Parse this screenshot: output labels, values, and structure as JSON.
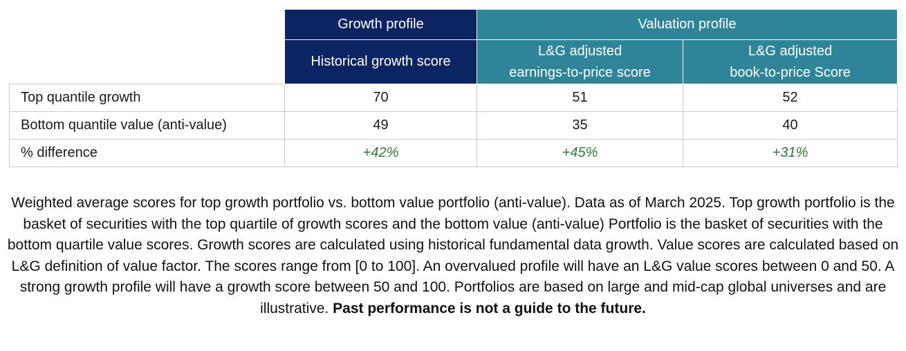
{
  "table": {
    "group_headers": {
      "growth": "Growth profile",
      "valuation": "Valuation profile"
    },
    "column_headers": {
      "historical_growth": "Historical growth score",
      "ep_line1": "L&G adjusted",
      "ep_line2": "earnings-to-price score",
      "bp_line1": "L&G adjusted",
      "bp_line2": "book-to-price Score"
    },
    "rows": [
      {
        "label": "Top quantile growth",
        "growth": "70",
        "ep": "51",
        "bp": "52"
      },
      {
        "label": "Bottom quantile value (anti-value)",
        "growth": "49",
        "ep": "35",
        "bp": "40"
      },
      {
        "label": "% difference",
        "growth": "+42%",
        "ep": "+45%",
        "bp": "+31%"
      }
    ]
  },
  "caption": {
    "text": "Weighted average scores for top growth portfolio vs. bottom value portfolio (anti-value). Data as of March 2025. Top growth portfolio is the basket of securities with the top quartile of growth scores and the bottom value (anti-value) Portfolio is the basket of securities with the bottom quartile value scores. Growth scores are calculated using historical fundamental data growth. Value scores are calculated based on L&G definition of value factor. The scores range from [0 to 100]. An overvalued profile will have an L&G value scores between 0 and 50. A strong growth profile will have a growth score between 50 and 100. Portfolios are based on large and mid-cap global universes and are illustrative.",
    "bold": "Past performance is not a guide to the future."
  },
  "colors": {
    "growth_header": "#0c2461",
    "valuation_header": "#2e8597",
    "pct_text": "#2e7d32"
  }
}
